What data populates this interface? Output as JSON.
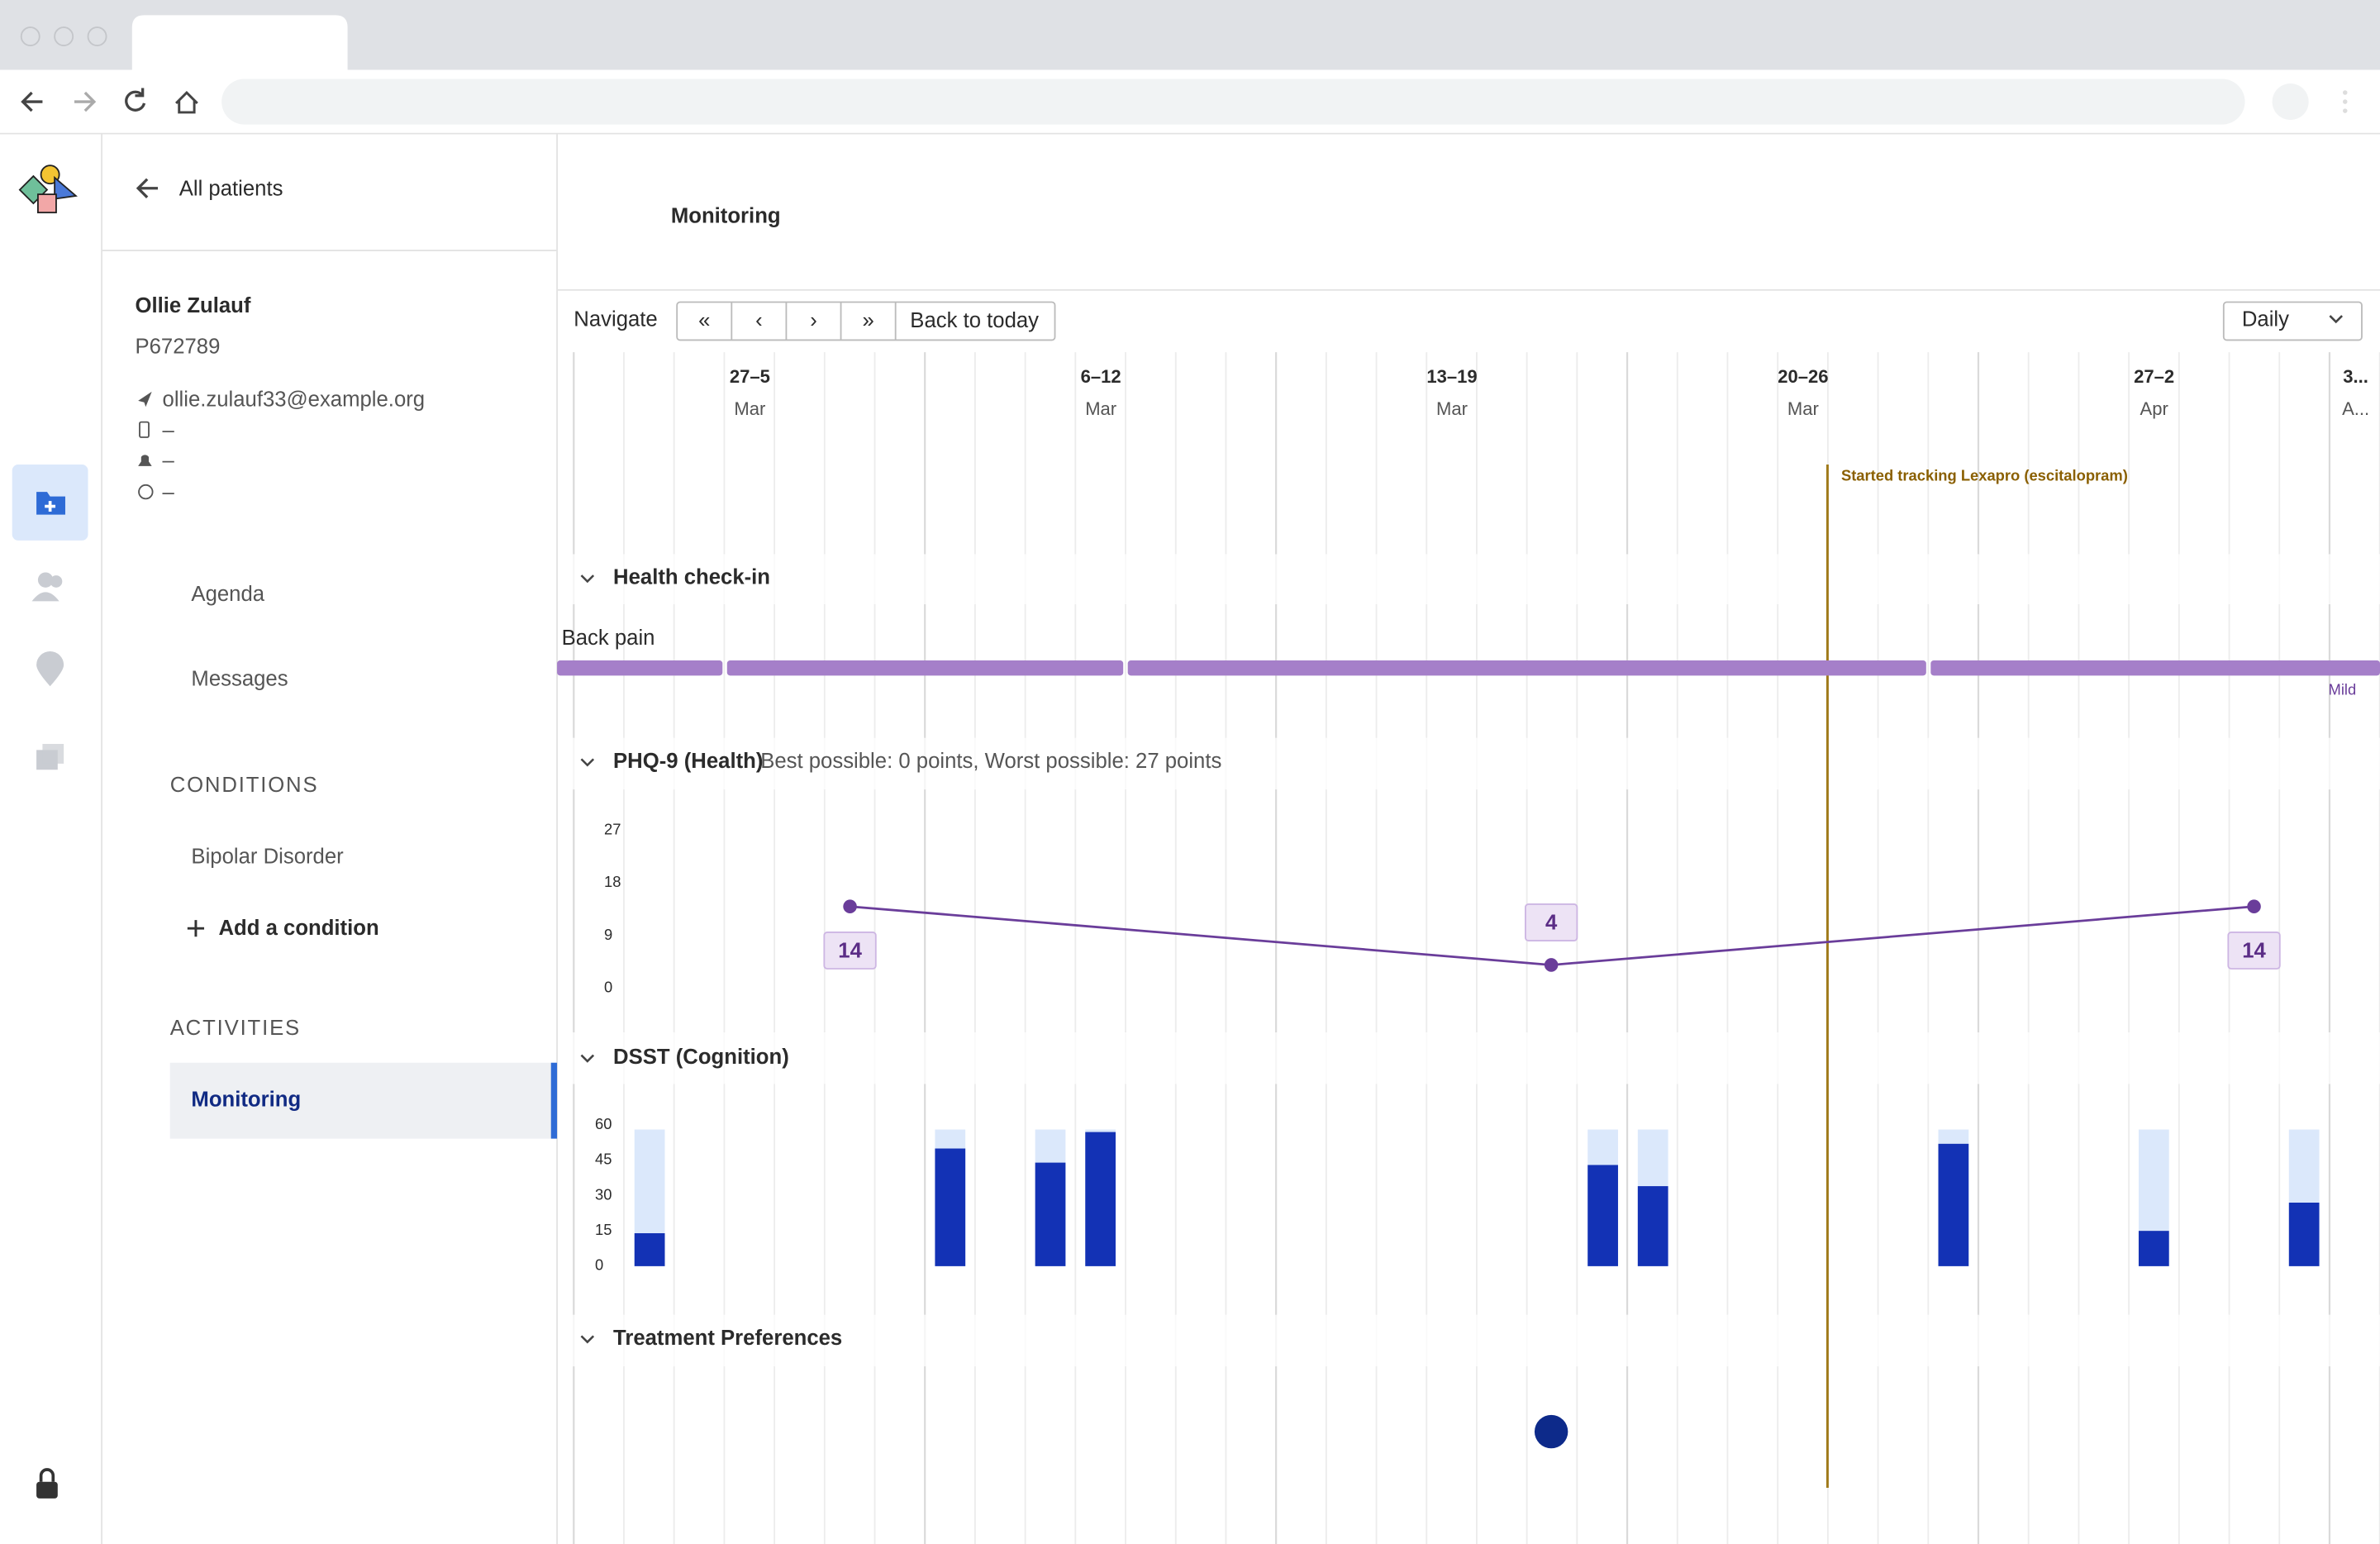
{
  "sidebar": {
    "back_link": "All patients",
    "patient": {
      "name": "Ollie Zulauf",
      "id": "P672789",
      "email": "ollie.zulauf33@example.org",
      "phone": "–",
      "notifications": "–",
      "time": "–"
    },
    "nav": [
      "Agenda",
      "Messages"
    ],
    "conditions_heading": "CONDITIONS",
    "conditions": [
      "Bipolar Disorder"
    ],
    "add_condition": "Add a condition",
    "activities_heading": "ACTIVITIES",
    "activities": [
      "Monitoring"
    ]
  },
  "main": {
    "title": "Monitoring",
    "navigate_label": "Navigate",
    "buttons": [
      "«",
      "‹",
      "›",
      "»",
      "Back to today"
    ],
    "view_select": "Daily",
    "weeks": [
      {
        "range": "27–5",
        "month": "Mar"
      },
      {
        "range": "6–12",
        "month": "Mar"
      },
      {
        "range": "13–19",
        "month": "Mar"
      },
      {
        "range": "20–26",
        "month": "Mar"
      },
      {
        "range": "27–2",
        "month": "Apr"
      },
      {
        "range": "3...",
        "month": "A..."
      }
    ],
    "event": "Started tracking Lexapro (escitalopram)",
    "health_checkin": {
      "title": "Health check-in",
      "item": "Back pain",
      "severity": "Mild"
    },
    "phq9": {
      "title": "PHQ-9 (Health)",
      "subtitle": "Best possible: 0 points, Worst possible: 27 points",
      "ylim": [
        0,
        27
      ],
      "yticks": [
        0,
        9,
        18,
        27
      ],
      "values": [
        14,
        4,
        14
      ]
    },
    "dsst": {
      "title": "DSST (Cognition)",
      "ylim": [
        0,
        60
      ],
      "yticks": [
        0,
        15,
        30,
        45,
        60
      ],
      "values": [
        14,
        50,
        44,
        57,
        43,
        34,
        52,
        15,
        27
      ]
    },
    "treatment": {
      "title": "Treatment Preferences"
    }
  }
}
